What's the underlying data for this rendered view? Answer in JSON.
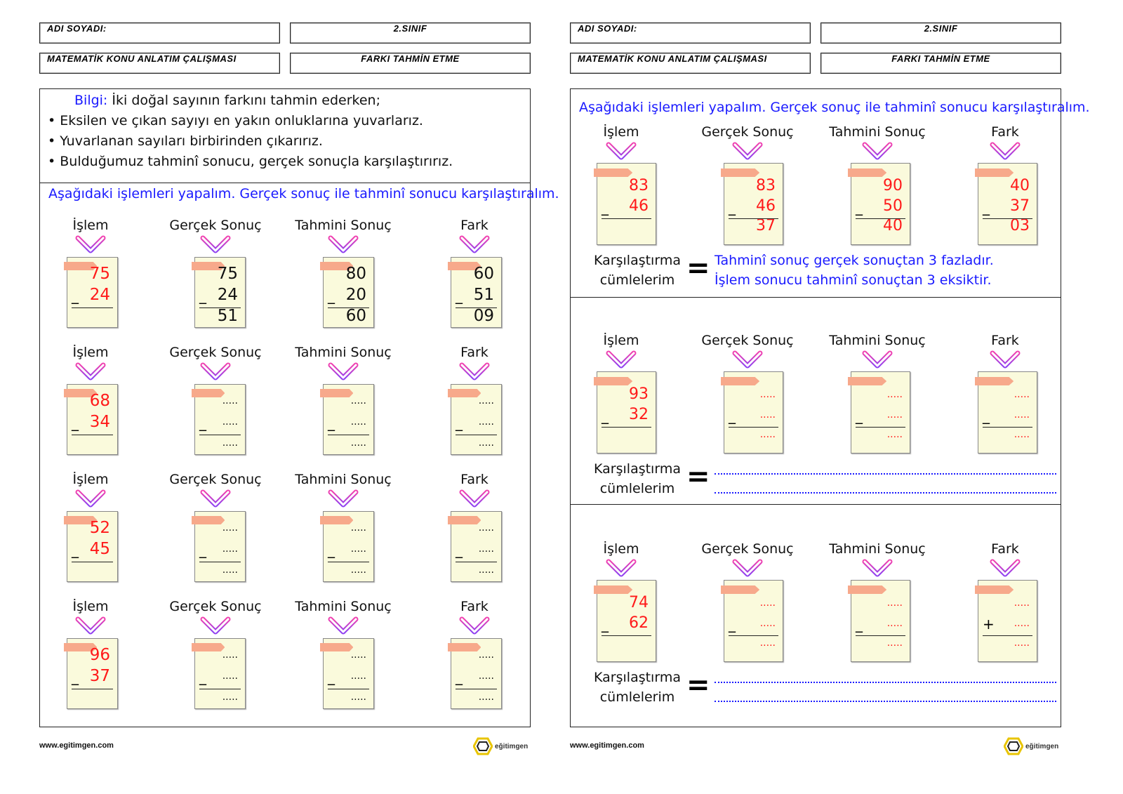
{
  "header": {
    "name_label": "ADI SOYADI:",
    "grade": "2.SINIF",
    "subject": "MATEMATİK KONU ANLATIM ÇALIŞMASI",
    "topic": "FARKI TAHMİN ETME"
  },
  "info": {
    "title": "Bilgi:",
    "intro": "İki doğal sayının farkını tahmin ederken;",
    "bullets": [
      "• Eksilen ve çıkan sayıyı en yakın onluklarına yuvarlarız.",
      "• Yuvarlanan sayıları birbirinden çıkarırız.",
      "• Bulduğumuz tahminî sonucu, gerçek sonuçla karşılaştırırız."
    ]
  },
  "instruction": "Aşağıdaki işlemleri yapalım. Gerçek sonuç ile tahminî sonucu karşılaştıralım.",
  "column_labels": [
    "İşlem",
    "Gerçek Sonuç",
    "Tahmini Sonuç",
    "Fark"
  ],
  "left_rows": [
    {
      "cards": [
        {
          "nums": [
            "75",
            "24",
            ""
          ],
          "color": "red"
        },
        {
          "nums": [
            "75",
            "24",
            "51"
          ],
          "color": "black"
        },
        {
          "nums": [
            "80",
            "20",
            "60"
          ],
          "color": "black"
        },
        {
          "nums": [
            "60",
            "51",
            "09"
          ],
          "color": "black"
        }
      ]
    },
    {
      "cards": [
        {
          "nums": [
            "68",
            "34",
            ""
          ],
          "color": "red"
        },
        {
          "nums": [
            ".....",
            ".....",
            "....."
          ],
          "color": "black"
        },
        {
          "nums": [
            ".....",
            ".....",
            "....."
          ],
          "color": "black"
        },
        {
          "nums": [
            ".....",
            ".....",
            "....."
          ],
          "color": "black"
        }
      ]
    },
    {
      "cards": [
        {
          "nums": [
            "52",
            "45",
            ""
          ],
          "color": "red"
        },
        {
          "nums": [
            ".....",
            ".....",
            "....."
          ],
          "color": "black"
        },
        {
          "nums": [
            ".....",
            ".....",
            "....."
          ],
          "color": "black"
        },
        {
          "nums": [
            ".....",
            ".....",
            "....."
          ],
          "color": "black"
        }
      ]
    },
    {
      "cards": [
        {
          "nums": [
            "96",
            "37",
            ""
          ],
          "color": "red"
        },
        {
          "nums": [
            ".....",
            ".....",
            "....."
          ],
          "color": "black"
        },
        {
          "nums": [
            ".....",
            ".....",
            "....."
          ],
          "color": "black"
        },
        {
          "nums": [
            ".....",
            ".....",
            "....."
          ],
          "color": "black"
        }
      ]
    }
  ],
  "right_rows": [
    {
      "cards": [
        {
          "nums": [
            "83",
            "46",
            ""
          ],
          "color": "red",
          "op": "_"
        },
        {
          "nums": [
            "83",
            "46",
            "37"
          ],
          "color": "red",
          "op": "_"
        },
        {
          "nums": [
            "90",
            "50",
            "40"
          ],
          "color": "red",
          "op": "_"
        },
        {
          "nums": [
            "40",
            "37",
            "03"
          ],
          "color": "red",
          "op": "_"
        }
      ],
      "comparison": [
        "Tahminî sonuç gerçek sonuçtan 3 fazladır.",
        "İşlem sonucu tahminî sonuçtan 3 eksiktir."
      ]
    },
    {
      "cards": [
        {
          "nums": [
            "93",
            "32",
            ""
          ],
          "color": "red",
          "op": "_"
        },
        {
          "nums": [
            ".....",
            ".....",
            "....."
          ],
          "color": "red",
          "op": "_"
        },
        {
          "nums": [
            ".....",
            ".....",
            "....."
          ],
          "color": "red",
          "op": "_"
        },
        {
          "nums": [
            ".....",
            ".....",
            "....."
          ],
          "color": "red",
          "op": "_"
        }
      ],
      "comparison": []
    },
    {
      "cards": [
        {
          "nums": [
            "74",
            "62",
            ""
          ],
          "color": "red",
          "op": "_"
        },
        {
          "nums": [
            ".....",
            ".....",
            "....."
          ],
          "color": "red",
          "op": "_"
        },
        {
          "nums": [
            ".....",
            ".....",
            "....."
          ],
          "color": "red",
          "op": "_"
        },
        {
          "nums": [
            ".....",
            ".....",
            "....."
          ],
          "color": "red",
          "op": "+"
        }
      ],
      "comparison": []
    }
  ],
  "comparison_label": [
    "Karşılaştırma",
    "cümlelerim"
  ],
  "equals": "=",
  "minus": "_",
  "footer": {
    "url": "www.egitimgen.com",
    "logo": "eğitimgen"
  },
  "colors": {
    "red": "#ff1a1a",
    "blue": "#1a1aff",
    "black": "#111111",
    "card": "#fafadc",
    "tab": "#f7a98b"
  }
}
